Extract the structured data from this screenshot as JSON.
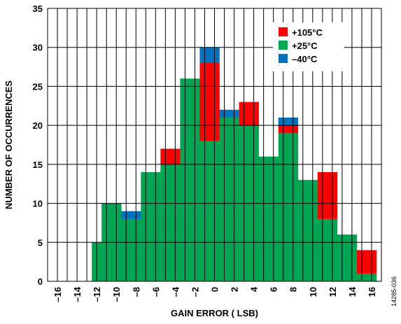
{
  "chart_data": {
    "type": "bar",
    "stacked": true,
    "x": [
      -16,
      -15,
      -14,
      -13,
      -12,
      -11,
      -10,
      -9,
      -8,
      -7,
      -6,
      -5,
      -4,
      -3,
      -2,
      -1,
      0,
      1,
      2,
      3,
      4,
      5,
      6,
      7,
      8,
      9,
      10,
      11,
      12,
      13,
      14,
      15,
      16
    ],
    "x_ticks": [
      -16,
      -14,
      -12,
      -10,
      -8,
      -6,
      -4,
      -2,
      0,
      2,
      4,
      6,
      8,
      10,
      12,
      14,
      16
    ],
    "x_tick_labels": [
      "–16",
      "–14",
      "–12",
      "–10",
      "–8",
      "–6",
      "–4",
      "–2",
      "0",
      "2",
      "4",
      "6",
      "8",
      "10",
      "12",
      "14",
      "16"
    ],
    "y_ticks": [
      0,
      5,
      10,
      15,
      20,
      25,
      30,
      35
    ],
    "series": [
      {
        "name": "+25°C",
        "color": "#00a651",
        "values": [
          0,
          0,
          0,
          0,
          5,
          10,
          10,
          8,
          8,
          14,
          14,
          15,
          15,
          26,
          26,
          18,
          18,
          21,
          21,
          20,
          20,
          16,
          16,
          19,
          19,
          13,
          13,
          8,
          8,
          6,
          6,
          1,
          1
        ]
      },
      {
        "name": "+105°C",
        "color": "#ff0000",
        "values": [
          0,
          0,
          0,
          0,
          0,
          0,
          0,
          0,
          0,
          0,
          0,
          2,
          2,
          0,
          0,
          10,
          10,
          0,
          0,
          3,
          3,
          0,
          0,
          1,
          1,
          0,
          0,
          6,
          6,
          0,
          0,
          3,
          3
        ]
      },
      {
        "name": "–40°C",
        "color": "#0070c0",
        "values": [
          0,
          0,
          0,
          0,
          0,
          0,
          0,
          1,
          1,
          0,
          0,
          0,
          0,
          0,
          0,
          2,
          2,
          1,
          1,
          0,
          0,
          0,
          0,
          1,
          1,
          0,
          0,
          0,
          0,
          0,
          0,
          0,
          0
        ]
      }
    ],
    "legend": [
      {
        "label": "+105°C",
        "color": "#ff0000"
      },
      {
        "label": "+25°C",
        "color": "#00a651"
      },
      {
        "label": "–40°C",
        "color": "#0070c0"
      }
    ],
    "legend_position": "top-right",
    "xlabel": "GAIN ERROR ( LSB)",
    "ylabel": "NUMBER OF OCCURRENCES",
    "xlim": [
      -17,
      17
    ],
    "ylim": [
      0,
      35
    ],
    "grid": true
  },
  "figure_id": "14285-036"
}
